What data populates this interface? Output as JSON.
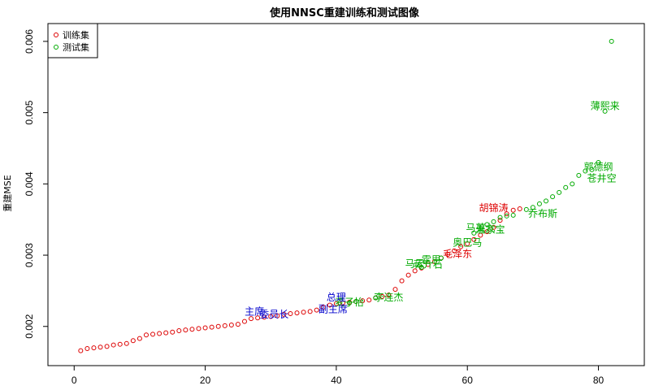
{
  "chart_data": {
    "type": "scatter",
    "title": "使用NNSC重建训练和测试图像",
    "xlabel": "",
    "ylabel": "重建MSE",
    "xlim": [
      -4,
      87
    ],
    "ylim": [
      0.00145,
      0.00625
    ],
    "x_ticks": [
      0,
      20,
      40,
      60,
      80
    ],
    "y_ticks": [
      0.002,
      0.003,
      0.004,
      0.005,
      0.006
    ],
    "grid": false,
    "legend_position": "top-left",
    "series": [
      {
        "name": "训练集",
        "color": "#DD0000",
        "points": [
          [
            1,
            0.00166
          ],
          [
            2,
            0.00169
          ],
          [
            3,
            0.0017
          ],
          [
            4,
            0.00171
          ],
          [
            5,
            0.00172
          ],
          [
            6,
            0.00174
          ],
          [
            7,
            0.00175
          ],
          [
            8,
            0.00176
          ],
          [
            9,
            0.0018
          ],
          [
            10,
            0.00183
          ],
          [
            11,
            0.00188
          ],
          [
            12,
            0.00189
          ],
          [
            13,
            0.0019
          ],
          [
            14,
            0.00191
          ],
          [
            15,
            0.00192
          ],
          [
            16,
            0.00194
          ],
          [
            17,
            0.00195
          ],
          [
            18,
            0.00196
          ],
          [
            19,
            0.00197
          ],
          [
            20,
            0.00198
          ],
          [
            21,
            0.00199
          ],
          [
            22,
            0.002
          ],
          [
            23,
            0.00201
          ],
          [
            24,
            0.00202
          ],
          [
            25,
            0.00203
          ],
          [
            26,
            0.00207
          ],
          [
            27,
            0.00211
          ],
          [
            28,
            0.00212
          ],
          [
            29,
            0.00213
          ],
          [
            30,
            0.00214
          ],
          [
            31,
            0.00215
          ],
          [
            32,
            0.00217
          ],
          [
            33,
            0.00218
          ],
          [
            34,
            0.00219
          ],
          [
            35,
            0.0022
          ],
          [
            36,
            0.00221
          ],
          [
            37,
            0.00223
          ],
          [
            38,
            0.00227
          ],
          [
            39,
            0.0023
          ],
          [
            40,
            0.00232
          ],
          [
            41,
            0.00233
          ],
          [
            42,
            0.00234
          ],
          [
            43,
            0.00235
          ],
          [
            44,
            0.00236
          ],
          [
            45,
            0.00237
          ],
          [
            46,
            0.0024
          ],
          [
            47,
            0.00242
          ],
          [
            48,
            0.00244
          ],
          [
            49,
            0.00252
          ],
          [
            50,
            0.00264
          ],
          [
            51,
            0.00272
          ],
          [
            52,
            0.00278
          ],
          [
            53,
            0.00282
          ],
          [
            54,
            0.00287
          ],
          [
            55,
            0.00291
          ],
          [
            56,
            0.00296
          ],
          [
            57,
            0.00301
          ],
          [
            58,
            0.00306
          ],
          [
            59,
            0.00312
          ],
          [
            60,
            0.00316
          ],
          [
            61,
            0.00322
          ],
          [
            62,
            0.00328
          ],
          [
            63,
            0.00333
          ],
          [
            64,
            0.00339
          ],
          [
            65,
            0.00349
          ],
          [
            66,
            0.00358
          ],
          [
            67,
            0.00363
          ],
          [
            68,
            0.00365
          ]
        ]
      },
      {
        "name": "测试集",
        "color": "#00AA00",
        "points": [
          [
            42,
            0.00233
          ],
          [
            43,
            0.00235
          ],
          [
            46,
            0.0024
          ],
          [
            53,
            0.00283
          ],
          [
            56,
            0.00296
          ],
          [
            61,
            0.00331
          ],
          [
            62,
            0.00337
          ],
          [
            63,
            0.00343
          ],
          [
            64,
            0.00347
          ],
          [
            65,
            0.00353
          ],
          [
            66,
            0.00355
          ],
          [
            67,
            0.00356
          ],
          [
            69,
            0.00364
          ],
          [
            70,
            0.00367
          ],
          [
            71,
            0.00372
          ],
          [
            72,
            0.00376
          ],
          [
            73,
            0.00382
          ],
          [
            74,
            0.00388
          ],
          [
            75,
            0.00395
          ],
          [
            76,
            0.004
          ],
          [
            77,
            0.00412
          ],
          [
            78,
            0.00418
          ],
          [
            79,
            0.0042
          ],
          [
            80,
            0.0043
          ],
          [
            81,
            0.00502
          ],
          [
            82,
            0.006
          ]
        ]
      }
    ],
    "annotations": [
      {
        "text": "胡锦涛",
        "x": 64,
        "y": 0.00366,
        "color": "#DD0000"
      },
      {
        "text": "毛泽东",
        "x": 58.5,
        "y": 0.00302,
        "color": "#DD0000"
      },
      {
        "text": "奥巴马",
        "x": 60,
        "y": 0.00318,
        "color": "#00AA00"
      },
      {
        "text": "马英九",
        "x": 62,
        "y": 0.00338,
        "color": "#00AA00"
      },
      {
        "text": "温家宝",
        "x": 63.5,
        "y": 0.00336,
        "color": "#00AA00"
      },
      {
        "text": "蒋介石",
        "x": 54,
        "y": 0.00287,
        "color": "#00AA00"
      },
      {
        "text": "霍思",
        "x": 54.5,
        "y": 0.00293,
        "color": "#00AA00"
      },
      {
        "text": "马云",
        "x": 52,
        "y": 0.00288,
        "color": "#00AA00"
      },
      {
        "text": "乔布斯",
        "x": 71.5,
        "y": 0.00358,
        "color": "#00AA00"
      },
      {
        "text": "郭德纲",
        "x": 80,
        "y": 0.00424,
        "color": "#00AA00"
      },
      {
        "text": "苍井空",
        "x": 80.5,
        "y": 0.00408,
        "color": "#00AA00"
      },
      {
        "text": "薄熙来",
        "x": 81,
        "y": 0.00509,
        "color": "#00AA00"
      },
      {
        "text": "李连杰",
        "x": 48,
        "y": 0.00241,
        "color": "#00AA00"
      },
      {
        "text": "麦子怡",
        "x": 42,
        "y": 0.00234,
        "color": "#00AA00"
      },
      {
        "text": "总理",
        "x": 40,
        "y": 0.00241,
        "color": "#0000CC"
      },
      {
        "text": "副主席",
        "x": 39.5,
        "y": 0.00224,
        "color": "#0000CC"
      },
      {
        "text": "主席",
        "x": 27.5,
        "y": 0.00221,
        "color": "#0000CC"
      },
      {
        "text": "委员长",
        "x": 30.5,
        "y": 0.00217,
        "color": "#0000CC"
      }
    ]
  }
}
